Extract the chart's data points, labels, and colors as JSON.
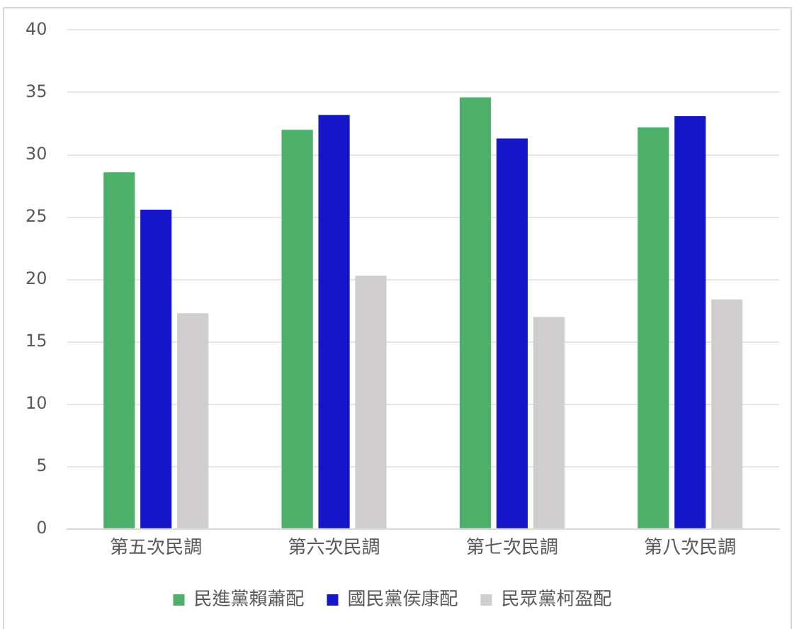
{
  "chart_data": {
    "type": "bar",
    "categories": [
      "第五次民調",
      "第六次民調",
      "第七次民調",
      "第八次民調"
    ],
    "series": [
      {
        "name": "民進黨賴蕭配",
        "color": "#4caf6a",
        "values": [
          28.6,
          32.0,
          34.6,
          32.2
        ]
      },
      {
        "name": "國民黨侯康配",
        "color": "#1515c9",
        "values": [
          25.6,
          33.2,
          31.3,
          33.1
        ]
      },
      {
        "name": "民眾黨柯盈配",
        "color": "#cfcdcd",
        "values": [
          17.3,
          20.3,
          17.0,
          18.4
        ]
      }
    ],
    "ylim": [
      0,
      40
    ],
    "yticks": [
      0,
      5,
      10,
      15,
      20,
      25,
      30,
      35,
      40
    ],
    "grid": "y",
    "legend": "bottom"
  }
}
